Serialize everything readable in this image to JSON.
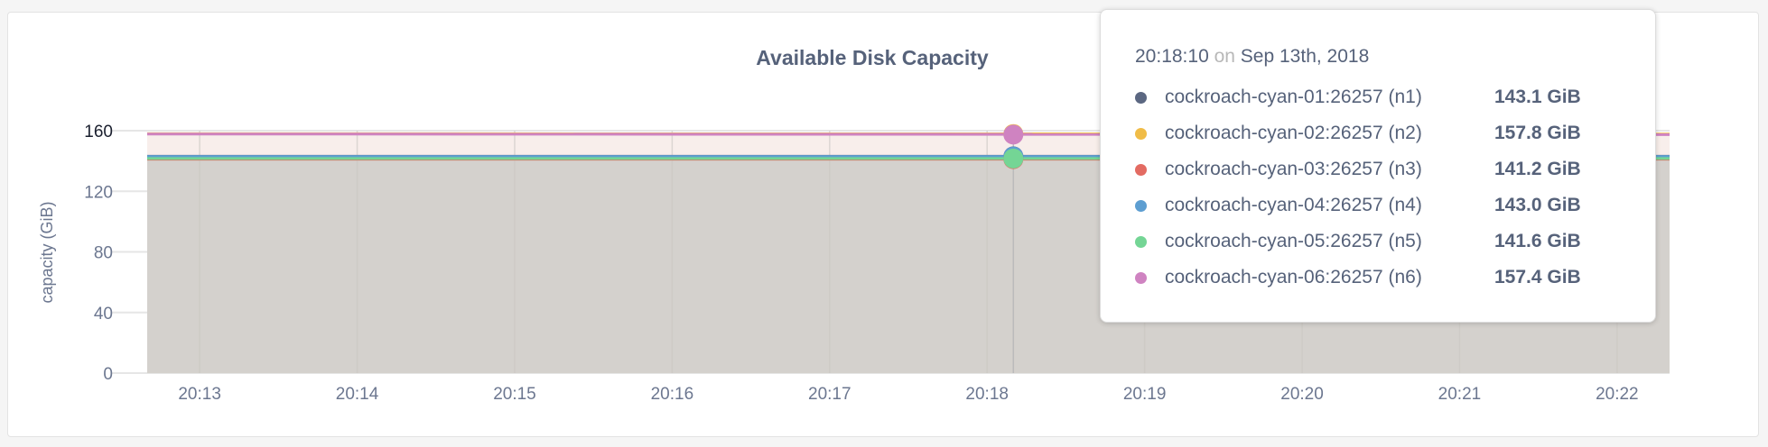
{
  "chart_data": {
    "type": "area",
    "title": "Available Disk Capacity",
    "ylabel": "capacity (GiB)",
    "ylim": [
      0,
      160
    ],
    "yticks": [
      "0",
      "40",
      "80",
      "120",
      "160"
    ],
    "xlim": [
      "20:12:40",
      "20:22:20"
    ],
    "xticks": [
      "20:13",
      "20:14",
      "20:15",
      "20:16",
      "20:17",
      "20:18",
      "20:19",
      "20:20",
      "20:21",
      "20:22"
    ],
    "grid": true,
    "series": [
      {
        "name": "cockroach-cyan-01:26257 (n1)",
        "color": "#5b6781",
        "values": [
          143.1,
          143.1
        ]
      },
      {
        "name": "cockroach-cyan-02:26257 (n2)",
        "color": "#f0bc47",
        "values": [
          158.0,
          157.8
        ]
      },
      {
        "name": "cockroach-cyan-03:26257 (n3)",
        "color": "#e36b62",
        "values": [
          141.2,
          141.2
        ]
      },
      {
        "name": "cockroach-cyan-04:26257 (n4)",
        "color": "#5d9ed1",
        "values": [
          143.0,
          143.0
        ]
      },
      {
        "name": "cockroach-cyan-05:26257 (n5)",
        "color": "#74d595",
        "values": [
          141.6,
          141.6
        ]
      },
      {
        "name": "cockroach-cyan-06:26257 (n6)",
        "color": "#cf83c1",
        "values": [
          157.8,
          157.4
        ]
      }
    ],
    "series_x": [
      "20:12:40",
      "20:22:20"
    ],
    "hover": {
      "time": "20:18:10",
      "on": "on",
      "date": "Sep 13th, 2018",
      "rows": [
        {
          "label": "cockroach-cyan-01:26257 (n1)",
          "value": "143.1 GiB"
        },
        {
          "label": "cockroach-cyan-02:26257 (n2)",
          "value": "157.8 GiB"
        },
        {
          "label": "cockroach-cyan-03:26257 (n3)",
          "value": "141.2 GiB"
        },
        {
          "label": "cockroach-cyan-04:26257 (n4)",
          "value": "143.0 GiB"
        },
        {
          "label": "cockroach-cyan-05:26257 (n5)",
          "value": "141.6 GiB"
        },
        {
          "label": "cockroach-cyan-06:26257 (n6)",
          "value": "157.4 GiB"
        }
      ]
    }
  }
}
